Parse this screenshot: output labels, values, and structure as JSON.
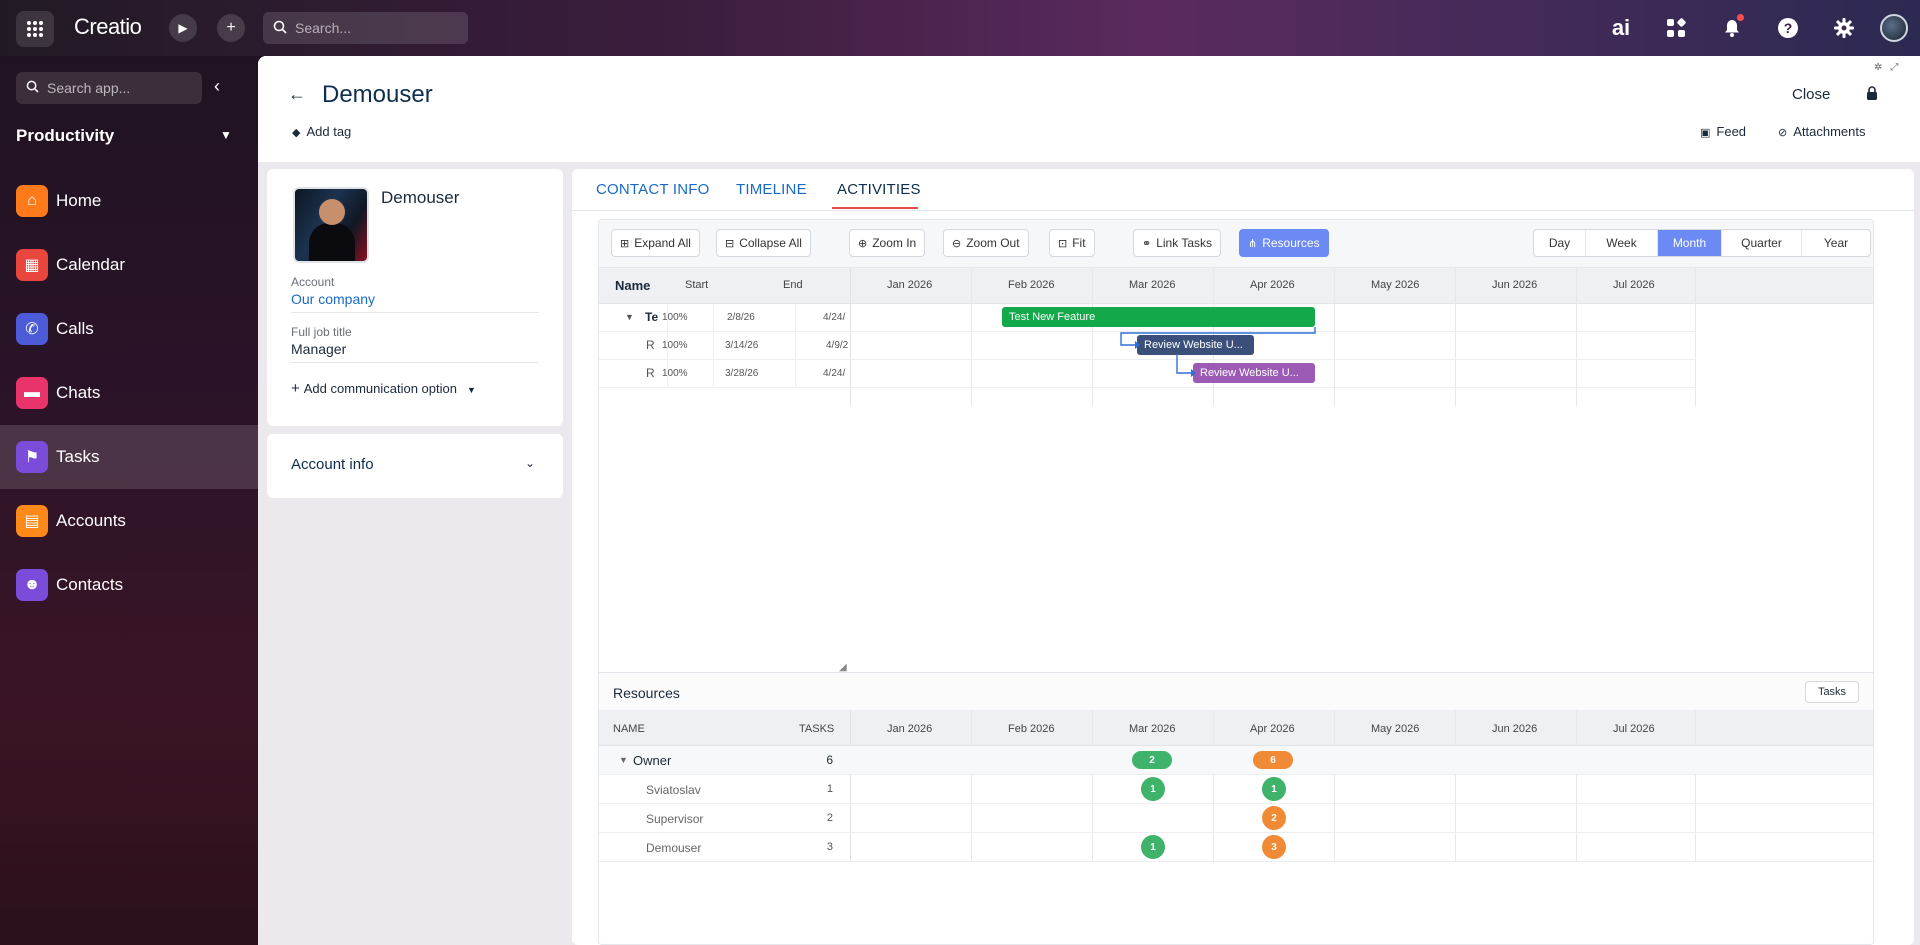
{
  "topbar": {
    "logo": "Creatio",
    "search_placeholder": "Search...",
    "ai_label": "ai"
  },
  "sidebar": {
    "search_placeholder": "Search app...",
    "workspace": "Productivity",
    "items": [
      {
        "label": "Home",
        "icon": "home-icon",
        "color": "#ff7a1a"
      },
      {
        "label": "Calendar",
        "icon": "calendar-icon",
        "color": "#e8453c"
      },
      {
        "label": "Calls",
        "icon": "phone-icon",
        "color": "#4c5cd9"
      },
      {
        "label": "Chats",
        "icon": "chat-icon",
        "color": "#e8336b"
      },
      {
        "label": "Tasks",
        "icon": "flag-icon",
        "color": "#7b4bd9",
        "active": true
      },
      {
        "label": "Accounts",
        "icon": "building-icon",
        "color": "#ff8a1a"
      },
      {
        "label": "Contacts",
        "icon": "person-icon",
        "color": "#7b4bd9"
      }
    ]
  },
  "header": {
    "title": "Demouser",
    "add_tag": "Add tag",
    "close": "Close",
    "feed": "Feed",
    "attachments": "Attachments"
  },
  "contact": {
    "name": "Demouser",
    "account_label": "Account",
    "account_value": "Our company",
    "job_label": "Full job title",
    "job_value": "Manager",
    "add_comm": "Add communication option",
    "account_info": "Account info"
  },
  "tabs": [
    "CONTACT INFO",
    "TIMELINE",
    "ACTIVITIES"
  ],
  "active_tab": "ACTIVITIES",
  "gantt": {
    "toolbar": {
      "expand_all": "Expand All",
      "collapse_all": "Collapse All",
      "zoom_in": "Zoom In",
      "zoom_out": "Zoom Out",
      "fit": "Fit",
      "link_tasks": "Link Tasks",
      "resources": "Resources",
      "scales": [
        "Day",
        "Week",
        "Month",
        "Quarter",
        "Year"
      ],
      "active_scale": "Month"
    },
    "columns": {
      "name": "Name",
      "start": "Start",
      "end": "End"
    },
    "months": [
      "Jan 2026",
      "Feb 2026",
      "Mar 2026",
      "Apr 2026",
      "May 2026",
      "Jun 2026",
      "Jul 2026"
    ],
    "rows": [
      {
        "name": "Te",
        "progress": "100%",
        "start": "2/8/26",
        "end": "4/24/",
        "bar_label": "Test New Feature",
        "bar_color": "#13a84a"
      },
      {
        "name": "R",
        "progress": "100%",
        "start": "3/14/26",
        "end": "4/9/2",
        "bar_label": "Review Website U...",
        "bar_color": "#3a4f7a"
      },
      {
        "name": "R",
        "progress": "100%",
        "start": "3/28/26",
        "end": "4/24/",
        "bar_label": "Review Website U...",
        "bar_color": "#9b5bb5"
      }
    ]
  },
  "resources": {
    "title": "Resources",
    "tasks_button": "Tasks",
    "col_name": "NAME",
    "col_tasks": "TASKS",
    "groups": [
      {
        "name": "Owner",
        "tasks": "6",
        "mar": "2",
        "apr": "6"
      }
    ],
    "people": [
      {
        "name": "Sviatoslav",
        "tasks": "1",
        "mar": "1",
        "apr": "1"
      },
      {
        "name": "Supervisor",
        "tasks": "2",
        "mar": "",
        "apr": "2"
      },
      {
        "name": "Demouser",
        "tasks": "3",
        "mar": "1",
        "apr": "3"
      }
    ],
    "pill_colors": {
      "green": "#3fb36a",
      "orange": "#f08a34"
    }
  }
}
